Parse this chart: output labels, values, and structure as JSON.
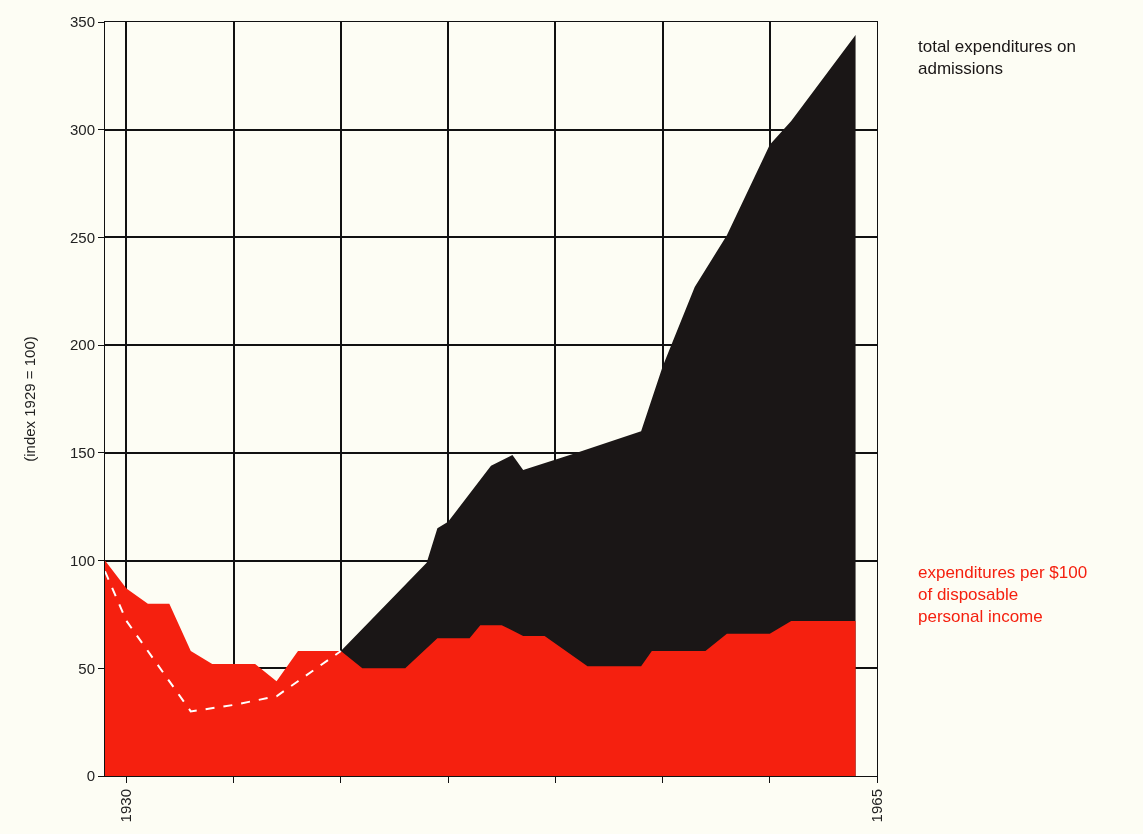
{
  "chart_data": {
    "type": "area",
    "ylabel": "(index 1929 = 100)",
    "xlim": [
      1929,
      1965
    ],
    "xticks": [
      1930,
      {
        "value": 1935,
        "label": null
      },
      {
        "value": 1940,
        "label": null
      },
      {
        "value": 1945,
        "label": null
      },
      {
        "value": 1950,
        "label": null
      },
      {
        "value": 1955,
        "label": null
      },
      {
        "value": 1960,
        "label": null
      },
      1965
    ],
    "ylim": [
      0,
      350
    ],
    "yticks": [
      0,
      50,
      100,
      150,
      200,
      250,
      300,
      350
    ],
    "grid": true,
    "series": [
      {
        "name": "total expenditures on admissions",
        "color": "#1a1616",
        "x": [
          1940,
          1944,
          1944.5,
          1945,
          1947,
          1948,
          1948.5,
          1951,
          1954,
          1954.5,
          1955,
          1956.5,
          1958,
          1960,
          1961,
          1964
        ],
        "values": [
          58,
          99,
          115,
          118,
          144,
          149,
          142,
          150,
          160,
          175,
          190,
          227,
          251,
          293,
          304,
          344
        ]
      },
      {
        "name": "expenditures per $100 of disposable personal income",
        "color": "#f5200f",
        "x": [
          1929,
          1930,
          1931,
          1932,
          1933,
          1934,
          1936,
          1937,
          1938,
          1940,
          1941,
          1943,
          1944.5,
          1946,
          1946.5,
          1947.5,
          1948.5,
          1949.5,
          1951.5,
          1954,
          1954.5,
          1957,
          1958,
          1960,
          1961,
          1964
        ],
        "values": [
          100,
          87,
          80,
          80,
          58,
          52,
          52,
          44,
          58,
          58,
          50,
          50,
          64,
          64,
          70,
          70,
          65,
          65,
          51,
          51,
          58,
          58,
          66,
          66,
          72,
          72
        ]
      },
      {
        "type": "line",
        "color": "#ffffff",
        "line_style": "dashed",
        "x": [
          1929,
          1930,
          1933,
          1935,
          1937,
          1938,
          1940
        ],
        "values": [
          95,
          72,
          30,
          33,
          37,
          44,
          58
        ]
      }
    ]
  }
}
